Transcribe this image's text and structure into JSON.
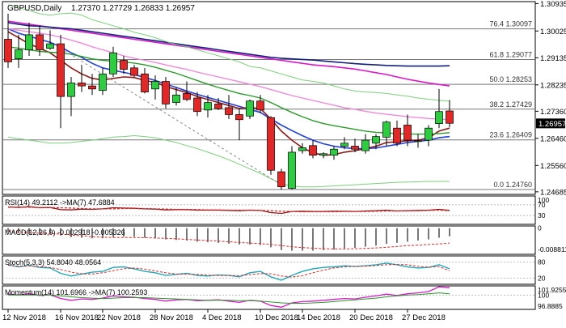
{
  "header": {
    "symbol": "GBPUSD,Daily",
    "ohlc": "1.27370 1.27729 1.26833 1.26957"
  },
  "colors": {
    "bull": "#2ecc40",
    "bear": "#e32626",
    "ma_blue": "#1f3fd8",
    "ma_maroon": "#8a1a1a",
    "ma_green": "#2a9a2a",
    "ma_pink": "#f08ad8",
    "ma_magenta": "#d81ac8",
    "ma_navy": "#12207a",
    "bb": "#7ccf7c",
    "fib": "#777777",
    "last_price_bg": "#000000"
  },
  "chart_data": {
    "type": "candlestick",
    "price_axis": {
      "ticks": [
        "1.30935",
        "1.30025",
        "1.29135",
        "1.28235",
        "1.27360",
        "1.26460",
        "1.25560",
        "1.24685"
      ],
      "last_price": "1.26957"
    },
    "time_axis": {
      "labels": [
        "12 Nov 2018",
        "16 Nov 2018",
        "22 Nov 2018",
        "28 Nov 2018",
        "4 Dec 2018",
        "10 Dec 2018",
        "14 Dec 2018",
        "20 Dec 2018",
        "27 Dec 2018"
      ]
    },
    "fib_levels": [
      {
        "label": "76.4 1.30097",
        "value": 1.30097
      },
      {
        "label": "61.8 1.29077",
        "value": 1.29077
      },
      {
        "label": "50.0 1.28253",
        "value": 1.28253
      },
      {
        "label": "38.2 1.27429",
        "value": 1.27429
      },
      {
        "label": "23.6 1.26409",
        "value": 1.26409
      },
      {
        "label": "0.0 1.24760",
        "value": 1.2476
      }
    ],
    "candles": [
      {
        "o": 1.2975,
        "h": 1.306,
        "l": 1.288,
        "c": 1.29
      },
      {
        "o": 1.291,
        "h": 1.299,
        "l": 1.288,
        "c": 1.294
      },
      {
        "o": 1.294,
        "h": 1.303,
        "l": 1.292,
        "c": 1.299
      },
      {
        "o": 1.299,
        "h": 1.302,
        "l": 1.292,
        "c": 1.294
      },
      {
        "o": 1.2945,
        "h": 1.3005,
        "l": 1.294,
        "c": 1.296
      },
      {
        "o": 1.296,
        "h": 1.299,
        "l": 1.268,
        "c": 1.2785
      },
      {
        "o": 1.2785,
        "h": 1.285,
        "l": 1.272,
        "c": 1.283
      },
      {
        "o": 1.283,
        "h": 1.289,
        "l": 1.28,
        "c": 1.282
      },
      {
        "o": 1.282,
        "h": 1.286,
        "l": 1.279,
        "c": 1.281
      },
      {
        "o": 1.2805,
        "h": 1.288,
        "l": 1.279,
        "c": 1.286
      },
      {
        "o": 1.286,
        "h": 1.295,
        "l": 1.285,
        "c": 1.293
      },
      {
        "o": 1.2905,
        "h": 1.292,
        "l": 1.286,
        "c": 1.2875
      },
      {
        "o": 1.288,
        "h": 1.289,
        "l": 1.285,
        "c": 1.2855
      },
      {
        "o": 1.286,
        "h": 1.288,
        "l": 1.2795,
        "c": 1.28
      },
      {
        "o": 1.281,
        "h": 1.2855,
        "l": 1.2775,
        "c": 1.2835
      },
      {
        "o": 1.2835,
        "h": 1.285,
        "l": 1.2745,
        "c": 1.276
      },
      {
        "o": 1.2765,
        "h": 1.2815,
        "l": 1.2755,
        "c": 1.279
      },
      {
        "o": 1.2795,
        "h": 1.2835,
        "l": 1.277,
        "c": 1.2775
      },
      {
        "o": 1.278,
        "h": 1.28,
        "l": 1.272,
        "c": 1.2735
      },
      {
        "o": 1.274,
        "h": 1.279,
        "l": 1.2715,
        "c": 1.2765
      },
      {
        "o": 1.276,
        "h": 1.278,
        "l": 1.274,
        "c": 1.2745
      },
      {
        "o": 1.2748,
        "h": 1.279,
        "l": 1.271,
        "c": 1.2725
      },
      {
        "o": 1.2725,
        "h": 1.2745,
        "l": 1.264,
        "c": 1.2708
      },
      {
        "o": 1.272,
        "h": 1.2775,
        "l": 1.271,
        "c": 1.277
      },
      {
        "o": 1.277,
        "h": 1.279,
        "l": 1.273,
        "c": 1.274
      },
      {
        "o": 1.2715,
        "h": 1.272,
        "l": 1.2525,
        "c": 1.254
      },
      {
        "o": 1.2535,
        "h": 1.2545,
        "l": 1.2475,
        "c": 1.2485
      },
      {
        "o": 1.248,
        "h": 1.262,
        "l": 1.2476,
        "c": 1.26
      },
      {
        "o": 1.2605,
        "h": 1.263,
        "l": 1.2595,
        "c": 1.2615
      },
      {
        "o": 1.2622,
        "h": 1.264,
        "l": 1.258,
        "c": 1.259
      },
      {
        "o": 1.259,
        "h": 1.26,
        "l": 1.258,
        "c": 1.2595
      },
      {
        "o": 1.259,
        "h": 1.262,
        "l": 1.2575,
        "c": 1.261
      },
      {
        "o": 1.262,
        "h": 1.265,
        "l": 1.261,
        "c": 1.263
      },
      {
        "o": 1.262,
        "h": 1.2645,
        "l": 1.26,
        "c": 1.261
      },
      {
        "o": 1.2605,
        "h": 1.266,
        "l": 1.2595,
        "c": 1.264
      },
      {
        "o": 1.263,
        "h": 1.266,
        "l": 1.261,
        "c": 1.2652
      },
      {
        "o": 1.265,
        "h": 1.2705,
        "l": 1.262,
        "c": 1.27
      },
      {
        "o": 1.268,
        "h": 1.2705,
        "l": 1.262,
        "c": 1.263
      },
      {
        "o": 1.269,
        "h": 1.2725,
        "l": 1.262,
        "c": 1.264
      },
      {
        "o": 1.2637,
        "h": 1.266,
        "l": 1.2615,
        "c": 1.2638
      },
      {
        "o": 1.264,
        "h": 1.269,
        "l": 1.262,
        "c": 1.268
      },
      {
        "o": 1.2695,
        "h": 1.281,
        "l": 1.268,
        "c": 1.2735
      },
      {
        "o": 1.2737,
        "h": 1.2773,
        "l": 1.2683,
        "c": 1.2696
      }
    ],
    "moving_averages": [
      {
        "key": "ma_blue",
        "values": [
          1.301,
          1.2995,
          1.2985,
          1.2975,
          1.2965,
          1.295,
          1.293,
          1.2915,
          1.2895,
          1.288,
          1.2872,
          1.2865,
          1.2858,
          1.2848,
          1.2838,
          1.2826,
          1.2815,
          1.2803,
          1.2792,
          1.2782,
          1.2772,
          1.2762,
          1.2752,
          1.2742,
          1.2732,
          1.271,
          1.269,
          1.2672,
          1.2655,
          1.264,
          1.2628,
          1.262,
          1.2615,
          1.2612,
          1.2612,
          1.2614,
          1.262,
          1.2626,
          1.2632,
          1.2636,
          1.264,
          1.2648,
          1.2652
        ]
      },
      {
        "key": "ma_maroon",
        "values": [
          1.3,
          1.298,
          1.296,
          1.2945,
          1.293,
          1.2905,
          1.288,
          1.286,
          1.2845,
          1.284,
          1.2845,
          1.285,
          1.2848,
          1.2838,
          1.2832,
          1.2818,
          1.2808,
          1.2798,
          1.2785,
          1.2775,
          1.2765,
          1.2755,
          1.2745,
          1.2748,
          1.2745,
          1.271,
          1.267,
          1.264,
          1.2615,
          1.2598,
          1.259,
          1.2592,
          1.26,
          1.2605,
          1.2612,
          1.262,
          1.2632,
          1.2635,
          1.2638,
          1.264,
          1.2648,
          1.267,
          1.268
        ]
      },
      {
        "key": "ma_green",
        "values": [
          1.295,
          1.2945,
          1.294,
          1.2935,
          1.2932,
          1.293,
          1.2925,
          1.2918,
          1.291,
          1.2905,
          1.2902,
          1.29,
          1.2896,
          1.289,
          1.2882,
          1.2872,
          1.2862,
          1.285,
          1.2838,
          1.2826,
          1.2815,
          1.2805,
          1.2795,
          1.2788,
          1.278,
          1.2765,
          1.2748,
          1.2732,
          1.2718,
          1.2705,
          1.2695,
          1.2688,
          1.2682,
          1.2676,
          1.267,
          1.2666,
          1.2664,
          1.2662,
          1.266,
          1.266,
          1.266,
          1.2662,
          1.2665
        ]
      },
      {
        "key": "ma_pink",
        "values": [
          1.301,
          1.3005,
          1.3,
          1.2995,
          1.299,
          1.2982,
          1.2972,
          1.2962,
          1.295,
          1.294,
          1.293,
          1.292,
          1.2912,
          1.2905,
          1.2898,
          1.289,
          1.2882,
          1.2875,
          1.2866,
          1.2858,
          1.285,
          1.2842,
          1.2834,
          1.2826,
          1.2818,
          1.2808,
          1.2798,
          1.2788,
          1.278,
          1.2772,
          1.2764,
          1.2756,
          1.2748,
          1.2742,
          1.2736,
          1.273,
          1.2726,
          1.2722,
          1.2718,
          1.2715,
          1.2712,
          1.271,
          1.2708
        ]
      },
      {
        "key": "ma_magenta",
        "values": [
          1.3035,
          1.303,
          1.3025,
          1.302,
          1.3015,
          1.301,
          1.3005,
          1.3,
          1.2995,
          1.299,
          1.2985,
          1.298,
          1.2975,
          1.297,
          1.2965,
          1.296,
          1.2955,
          1.295,
          1.2945,
          1.294,
          1.2935,
          1.293,
          1.2925,
          1.292,
          1.2915,
          1.291,
          1.2905,
          1.29,
          1.2895,
          1.289,
          1.2887,
          1.2884,
          1.288,
          1.2876,
          1.287,
          1.2864,
          1.2858,
          1.285,
          1.2842,
          1.2836,
          1.283,
          1.2825,
          1.282
        ]
      },
      {
        "key": "ma_navy",
        "values": [
          1.303,
          1.3025,
          1.302,
          1.3018,
          1.3015,
          1.3012,
          1.301,
          1.3005,
          1.3,
          1.2995,
          1.299,
          1.2985,
          1.298,
          1.2975,
          1.297,
          1.2965,
          1.296,
          1.2955,
          1.295,
          1.2945,
          1.294,
          1.2935,
          1.293,
          1.2925,
          1.292,
          1.2915,
          1.2912,
          1.291,
          1.2908,
          1.2906,
          1.2903,
          1.29,
          1.2897,
          1.2894,
          1.2892,
          1.289,
          1.2888,
          1.2887,
          1.2886,
          1.2886,
          1.2886,
          1.2886,
          1.2887
        ]
      },
      {
        "key": "bb",
        "values": [
          1.309,
          1.308,
          1.307,
          1.306,
          1.3055,
          1.306,
          1.3062,
          1.3055,
          1.304,
          1.303,
          1.302,
          1.301,
          1.2998,
          1.299,
          1.298,
          1.2968,
          1.2958,
          1.295,
          1.294,
          1.293,
          1.292,
          1.291,
          1.29,
          1.2885,
          1.288,
          1.287,
          1.286,
          1.285,
          1.284,
          1.2835,
          1.283,
          1.282,
          1.281,
          1.2803,
          1.28,
          1.2798,
          1.2795,
          1.279,
          1.2786,
          1.278,
          1.2776,
          1.2772,
          1.277
        ]
      },
      {
        "key": "bb",
        "values": [
          1.265,
          1.2645,
          1.264,
          1.2635,
          1.263,
          1.263,
          1.2632,
          1.2636,
          1.264,
          1.2645,
          1.265,
          1.2652,
          1.2655,
          1.2652,
          1.2648,
          1.264,
          1.2632,
          1.2622,
          1.2612,
          1.26,
          1.2588,
          1.2575,
          1.256,
          1.2545,
          1.253,
          1.2512,
          1.2495,
          1.2488,
          1.2485,
          1.2485,
          1.2486,
          1.2488,
          1.249,
          1.2492,
          1.2494,
          1.2496,
          1.2498,
          1.25,
          1.2501,
          1.2502,
          1.2503,
          1.2503,
          1.2503
        ]
      }
    ],
    "trend_line": {
      "from_candle": 5,
      "from_value": 1.2945,
      "to_candle": 26,
      "to_value": 1.2492
    },
    "indicators": [
      {
        "id": "rsi",
        "label": "RSI(14) 49.2112 ->MA(7) 47.6884",
        "levels_text": [
          "100",
          "70",
          "30"
        ],
        "line_main": [
          62,
          60,
          63,
          59,
          60,
          52,
          51,
          54,
          53,
          55,
          59,
          58,
          57,
          55,
          54,
          51,
          52,
          52,
          50,
          50,
          50,
          49,
          48,
          50,
          49,
          41,
          38,
          45,
          46,
          45,
          45,
          46,
          46,
          45,
          47,
          48,
          50,
          47,
          48,
          49,
          50,
          53,
          49
        ],
        "line_ma": [
          61,
          61,
          61,
          60,
          60,
          59,
          58,
          56,
          55,
          55,
          55,
          56,
          56,
          56,
          55,
          54,
          53,
          53,
          52,
          51,
          51,
          50,
          50,
          50,
          49,
          48,
          46,
          45,
          44,
          44,
          44,
          44,
          45,
          45,
          45,
          46,
          47,
          47,
          48,
          48,
          49,
          50,
          48
        ]
      },
      {
        "id": "macd",
        "label": "MACD(12,26,9) -0.002918 -0.005326",
        "levels_text": [
          "0",
          "-0.008811"
        ],
        "histogram": [
          -0.0012,
          -0.0018,
          -0.0022,
          -0.002,
          -0.0018,
          -0.0026,
          -0.0032,
          -0.0034,
          -0.0036,
          -0.0036,
          -0.0032,
          -0.003,
          -0.003,
          -0.0034,
          -0.0036,
          -0.004,
          -0.0042,
          -0.0044,
          -0.0048,
          -0.005,
          -0.0052,
          -0.0055,
          -0.0058,
          -0.0058,
          -0.006,
          -0.0068,
          -0.0078,
          -0.008,
          -0.008,
          -0.008,
          -0.0078,
          -0.0076,
          -0.0072,
          -0.007,
          -0.0066,
          -0.0062,
          -0.0056,
          -0.0052,
          -0.0048,
          -0.0044,
          -0.004,
          -0.0034,
          -0.0029
        ],
        "signal": [
          -0.001,
          -0.0013,
          -0.0016,
          -0.0018,
          -0.0019,
          -0.0021,
          -0.0024,
          -0.0027,
          -0.003,
          -0.0032,
          -0.0033,
          -0.0033,
          -0.0033,
          -0.0034,
          -0.0035,
          -0.0036,
          -0.0038,
          -0.004,
          -0.0042,
          -0.0044,
          -0.0046,
          -0.0048,
          -0.0051,
          -0.0053,
          -0.0055,
          -0.0058,
          -0.0062,
          -0.0066,
          -0.0069,
          -0.0071,
          -0.0073,
          -0.0074,
          -0.0074,
          -0.0073,
          -0.0072,
          -0.007,
          -0.0068,
          -0.0065,
          -0.0062,
          -0.006,
          -0.0058,
          -0.0056,
          -0.0053
        ]
      },
      {
        "id": "stoch",
        "label": "Stoch(5,3,3) 54.8040 48.0564",
        "levels_text": [
          "80",
          "20"
        ],
        "line_main": [
          70,
          62,
          68,
          60,
          58,
          38,
          28,
          35,
          42,
          45,
          60,
          62,
          55,
          45,
          40,
          30,
          34,
          38,
          30,
          28,
          32,
          30,
          25,
          40,
          45,
          25,
          12,
          30,
          45,
          55,
          60,
          62,
          66,
          64,
          66,
          70,
          76,
          70,
          62,
          58,
          60,
          70,
          55
        ],
        "line_signal": [
          68,
          65,
          66,
          63,
          60,
          52,
          42,
          36,
          35,
          40,
          48,
          55,
          58,
          54,
          47,
          40,
          35,
          35,
          34,
          31,
          30,
          30,
          29,
          33,
          37,
          36,
          28,
          24,
          29,
          40,
          50,
          58,
          62,
          64,
          65,
          67,
          70,
          71,
          70,
          64,
          61,
          63,
          48
        ]
      },
      {
        "id": "momentum",
        "label": "Momentum(14) 101.6966 ->MA(7) 100.2593",
        "levels_text": [
          "101.9255",
          "100",
          "96.8885"
        ],
        "line_main": [
          100.2,
          100.0,
          100.3,
          99.9,
          100.1,
          99.2,
          98.8,
          99.1,
          99.0,
          99.3,
          99.8,
          99.6,
          99.5,
          99.2,
          99.0,
          98.6,
          98.9,
          99.0,
          98.7,
          98.8,
          98.9,
          98.6,
          98.3,
          98.8,
          98.6,
          97.6,
          97.2,
          98.2,
          98.5,
          98.6,
          98.8,
          99.0,
          99.2,
          99.1,
          99.5,
          99.8,
          100.2,
          99.9,
          100.3,
          100.5,
          100.8,
          101.9,
          101.7
        ],
        "line_ma": [
          100.0,
          100.0,
          100.0,
          100.0,
          100.0,
          99.8,
          99.6,
          99.4,
          99.3,
          99.2,
          99.3,
          99.4,
          99.4,
          99.4,
          99.3,
          99.2,
          99.1,
          99.0,
          98.9,
          98.8,
          98.8,
          98.8,
          98.7,
          98.7,
          98.6,
          98.4,
          98.2,
          98.1,
          98.1,
          98.2,
          98.3,
          98.5,
          98.7,
          98.9,
          99.1,
          99.3,
          99.6,
          99.8,
          100.0,
          100.1,
          100.3,
          100.5,
          100.3
        ]
      }
    ]
  }
}
